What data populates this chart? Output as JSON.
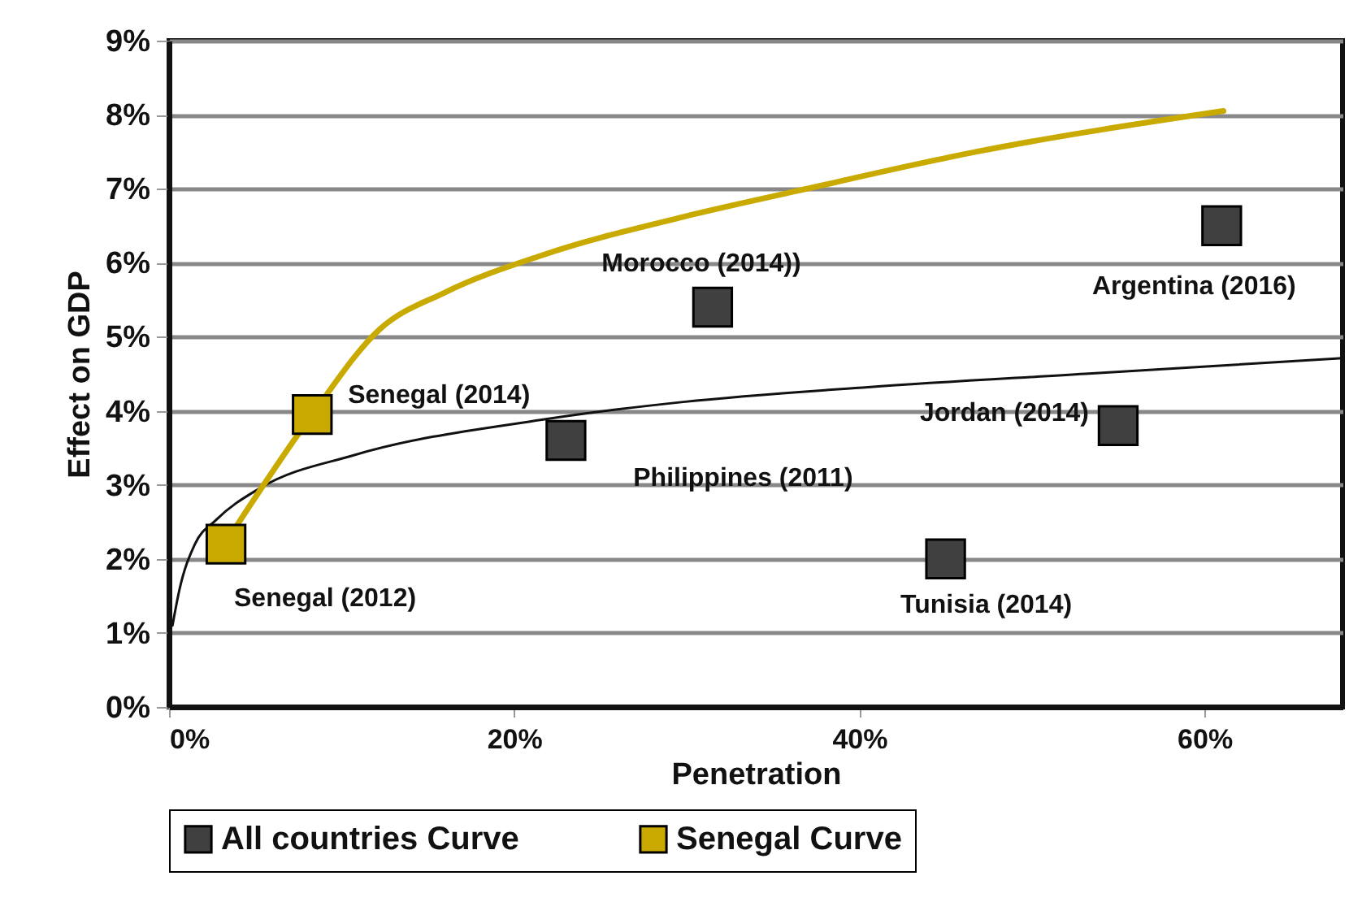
{
  "chart_data": {
    "type": "scatter",
    "xlabel": "Penetration",
    "ylabel": "Effect on GDP",
    "xlim": [
      0,
      68
    ],
    "ylim": [
      0,
      9
    ],
    "xticks": [
      {
        "value": 0,
        "label": "0%"
      },
      {
        "value": 20,
        "label": "20%"
      },
      {
        "value": 40,
        "label": "40%"
      },
      {
        "value": 60,
        "label": "60%"
      }
    ],
    "yticks": [
      {
        "value": 0,
        "label": "0%"
      },
      {
        "value": 1,
        "label": "1%"
      },
      {
        "value": 2,
        "label": "2%"
      },
      {
        "value": 3,
        "label": "3%"
      },
      {
        "value": 4,
        "label": "4%"
      },
      {
        "value": 5,
        "label": "5%"
      },
      {
        "value": 6,
        "label": "6%"
      },
      {
        "value": 7,
        "label": "7%"
      },
      {
        "value": 8,
        "label": "8%"
      },
      {
        "value": 9,
        "label": "9%"
      }
    ],
    "grid": "y",
    "legend": "bottom",
    "marker": "square",
    "series": [
      {
        "name": "All countries Curve",
        "color": "#404040",
        "x": [
          23,
          31.5,
          61,
          55,
          45
        ],
        "values": [
          3.6,
          5.4,
          6.5,
          3.8,
          2.0
        ]
      },
      {
        "name": "Senegal Curve",
        "color": "#c9a800",
        "x": [
          3.3,
          8.3
        ],
        "values": [
          2.2,
          3.95
        ]
      },
      {
        "type": "line",
        "marker": "none",
        "color": "#111111",
        "x": [
          0.2,
          0.6,
          1.5,
          2.7,
          5.3,
          10.7,
          21.6,
          29.8,
          40.5,
          53.1,
          68
        ],
        "values": [
          1.1,
          1.58,
          2.2,
          2.52,
          2.96,
          3.4,
          3.88,
          4.12,
          4.32,
          4.5,
          4.71
        ]
      },
      {
        "type": "line",
        "marker": "none",
        "color": "#c9aa00",
        "x": [
          3.7,
          8.3,
          12.2,
          16,
          21.6,
          29.8,
          36.4,
          46.8,
          61.1
        ],
        "values": [
          2.37,
          3.95,
          5.1,
          5.6,
          6.1,
          6.62,
          6.97,
          7.5,
          8.05
        ]
      }
    ],
    "annotations": [
      {
        "text": "Senegal (2014)",
        "x": 8.3,
        "y": 3.95
      },
      {
        "text": "Senegal (2012)",
        "x": 3.3,
        "y": 2.2
      },
      {
        "text": "Morocco (2014))",
        "x": 31.5,
        "y": 5.4
      },
      {
        "text": "Argentina (2016)",
        "x": 61,
        "y": 6.5
      },
      {
        "text": "Jordan (2014)",
        "x": 55,
        "y": 3.8
      },
      {
        "text": "Philippines (2011)",
        "x": 23,
        "y": 3.6
      },
      {
        "text": "Tunisia (2014)",
        "x": 45,
        "y": 2.0
      }
    ]
  }
}
